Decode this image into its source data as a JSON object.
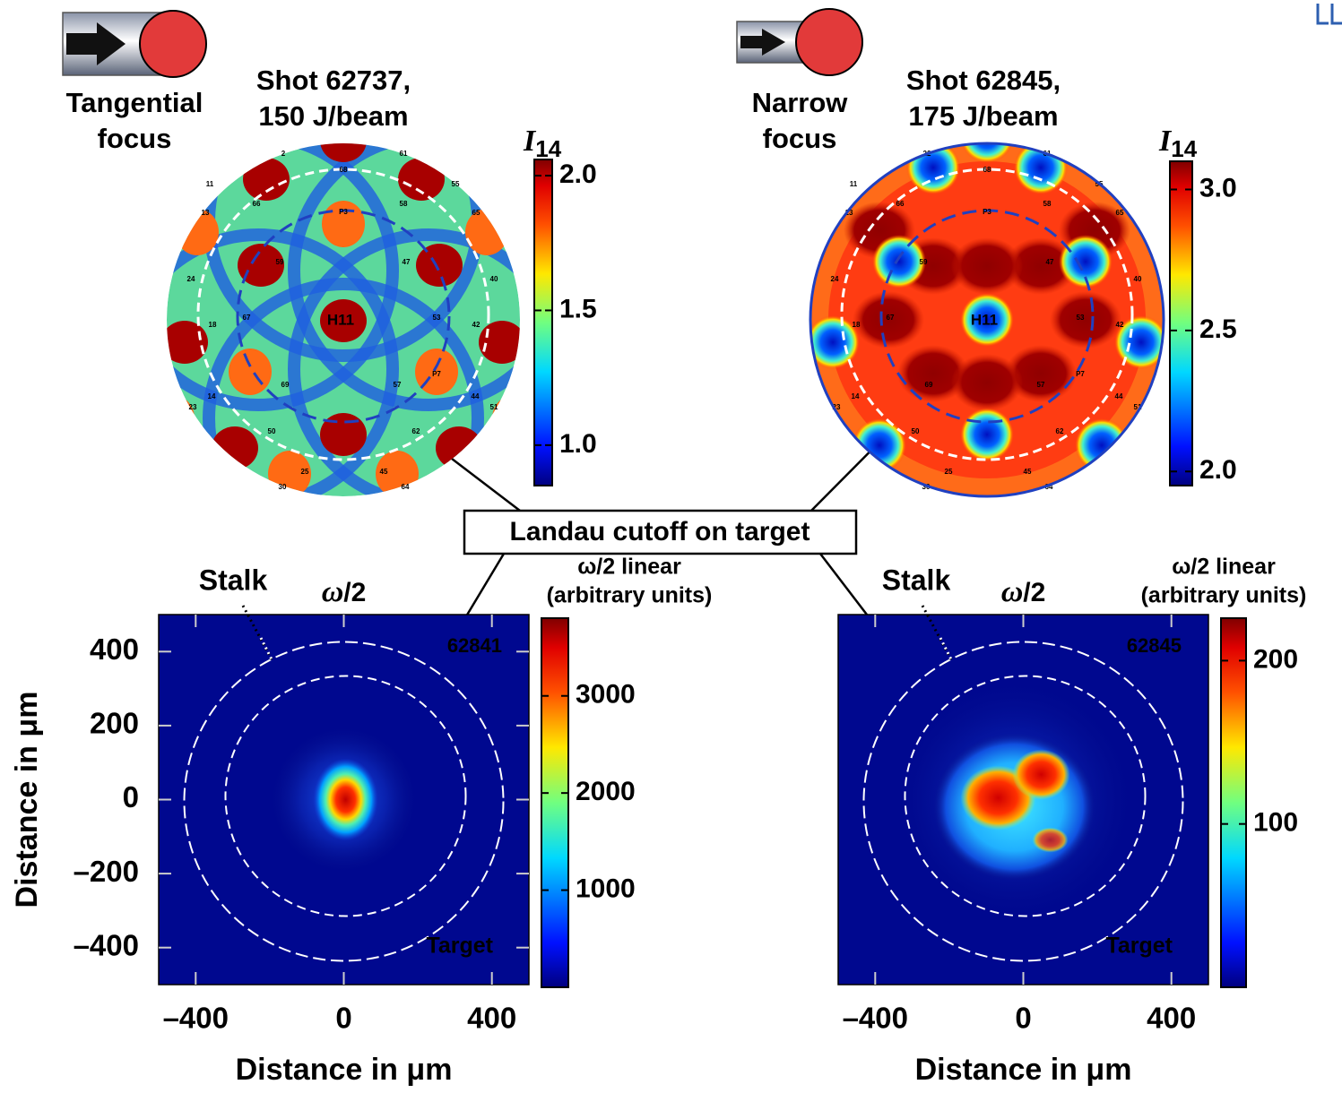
{
  "annotation": "Landau cutoff on target",
  "chart_data": [
    {
      "type": "sphere",
      "focus_label": [
        "Tangential",
        "focus"
      ],
      "shot_label": [
        "Shot 62737,",
        "150 J/beam"
      ],
      "port_labels": [
        "H11",
        "P3",
        "P7",
        "59",
        "47",
        "67",
        "53",
        "69",
        "57",
        "68",
        "66",
        "58",
        "13",
        "65",
        "11",
        "55",
        "24",
        "40",
        "18",
        "42",
        "14",
        "44",
        "50",
        "62",
        "25",
        "45",
        "23",
        "51",
        "2",
        "61",
        "30",
        "64"
      ],
      "colorbar_label": "I",
      "colorbar_subscript": "14",
      "clim": [
        0.85,
        2.06
      ],
      "cticks": [
        {
          "value": 2,
          "label": "2.0"
        },
        1.5,
        {
          "value": 1,
          "label": "1.0"
        }
      ]
    },
    {
      "type": "sphere",
      "focus_label": [
        "Narrow",
        "focus"
      ],
      "shot_label": [
        "Shot 62845,",
        "175 J/beam"
      ],
      "port_labels": [
        "H11",
        "P3",
        "P7",
        "59",
        "47",
        "67",
        "53",
        "69",
        "57",
        "68",
        "66",
        "58",
        "13",
        "65",
        "11",
        "55",
        "24",
        "40",
        "18",
        "42",
        "14",
        "44",
        "50",
        "62",
        "25",
        "45",
        "23",
        "51",
        "22",
        "61",
        "30",
        "64"
      ],
      "colorbar_label": "I",
      "colorbar_subscript": "14",
      "clim": [
        1.95,
        3.1
      ],
      "cticks": [
        {
          "value": 3,
          "label": "3.0"
        },
        2.5,
        {
          "value": 2,
          "label": "2.0"
        }
      ]
    },
    {
      "type": "heatmap",
      "title": [
        "ω",
        "/2"
      ],
      "shot": "62841",
      "stalk_label": "Stalk",
      "target_label": "Target",
      "xlabel": "Distance in μm",
      "ylabel": "Distance in μm",
      "xlim": [
        -500,
        500
      ],
      "ylim": [
        -500,
        500
      ],
      "xticks": [
        {
          "value": -400,
          "label": "–400"
        },
        0,
        400
      ],
      "yticks": [
        400,
        200,
        0,
        {
          "value": -200,
          "label": "–200"
        },
        {
          "value": -400,
          "label": "–400"
        }
      ],
      "colorbar_label": [
        "ω/2 linear",
        "(arbitrary units)"
      ],
      "clim": [
        0,
        3800
      ],
      "cticks": [
        1000,
        2000,
        3000
      ]
    },
    {
      "type": "heatmap",
      "title": [
        "ω",
        "/2"
      ],
      "shot": "62845",
      "stalk_label": "Stalk",
      "target_label": "Target",
      "xlabel": "Distance in μm",
      "xlim": [
        -500,
        500
      ],
      "ylim": [
        -500,
        500
      ],
      "xticks": [
        {
          "value": -400,
          "label": "–400"
        },
        0,
        400
      ],
      "colorbar_label": [
        "ω/2 linear",
        "(arbitrary units)"
      ],
      "clim": [
        0,
        226
      ],
      "cticks": [
        100,
        200
      ]
    }
  ]
}
